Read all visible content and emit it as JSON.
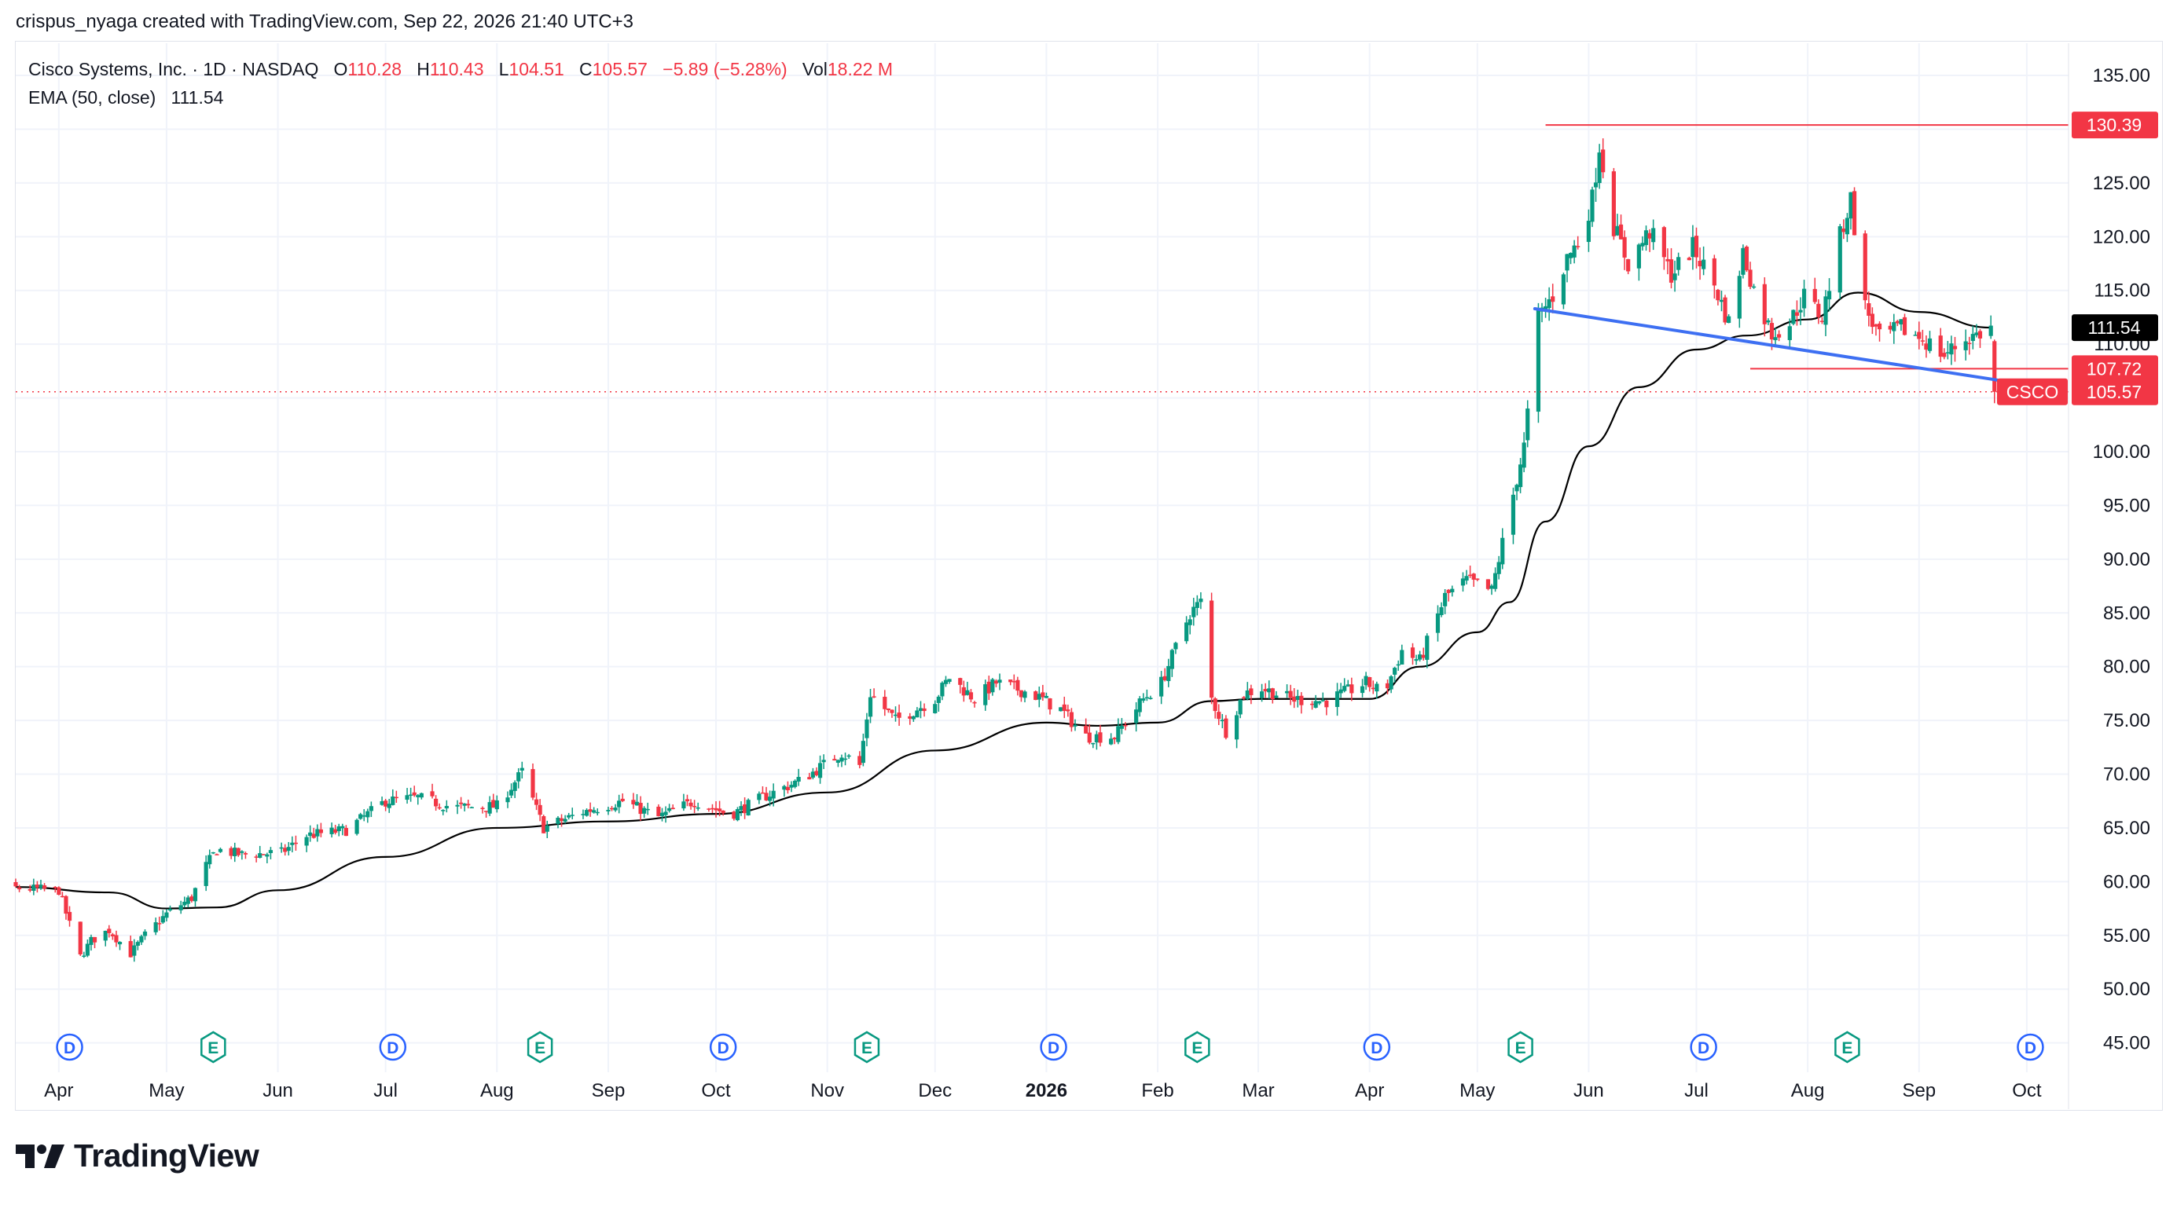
{
  "header": {
    "created_by": "crispus_nyaga created with TradingView.com, Sep 22, 2026 21:40 UTC+3"
  },
  "legend": {
    "symbol": "Cisco Systems, Inc. · 1D · NASDAQ",
    "o_label": "O",
    "o": "110.28",
    "h_label": "H",
    "h": "110.43",
    "l_label": "L",
    "l": "104.51",
    "c_label": "C",
    "c": "105.57",
    "change": "−5.89 (−5.28%)",
    "vol_label": "Vol",
    "vol": "18.22 M",
    "ema_label": "EMA (50, close)",
    "ema": "111.54"
  },
  "footer": {
    "brand": "TradingView"
  },
  "colors": {
    "up": "#089981",
    "down": "#f23645",
    "ema": "#000000",
    "trendline": "#3d6ff2",
    "level": "#f23645",
    "grid": "#f0f3fa",
    "axis_text": "#131722",
    "event_dividend": "#2962ff",
    "event_earnings": "#089981"
  },
  "chart_data": {
    "type": "candlestick",
    "symbol": "CSCO",
    "ylim": [
      43,
      138
    ],
    "y_ticks": [
      45,
      50,
      55,
      60,
      65,
      70,
      75,
      80,
      85,
      90,
      95,
      100,
      105,
      110,
      115,
      120,
      125,
      130,
      135
    ],
    "y_tick_labels": [
      "45.00",
      "50.00",
      "55.00",
      "60.00",
      "65.00",
      "70.00",
      "75.00",
      "80.00",
      "85.00",
      "90.00",
      "95.00",
      "100.00",
      "105.00",
      "110.00",
      "115.00",
      "120.00",
      "125.00",
      "130.00",
      "135.00"
    ],
    "x_range": [
      "2025-03-20",
      "2026-10-10"
    ],
    "x_ticks": [
      {
        "date": "2025-04-01",
        "label": "Apr"
      },
      {
        "date": "2025-05-01",
        "label": "May"
      },
      {
        "date": "2025-06-01",
        "label": "Jun"
      },
      {
        "date": "2025-07-01",
        "label": "Jul"
      },
      {
        "date": "2025-08-01",
        "label": "Aug"
      },
      {
        "date": "2025-09-01",
        "label": "Sep"
      },
      {
        "date": "2025-10-01",
        "label": "Oct"
      },
      {
        "date": "2025-11-01",
        "label": "Nov"
      },
      {
        "date": "2025-12-01",
        "label": "Dec"
      },
      {
        "date": "2026-01-01",
        "label": "2026"
      },
      {
        "date": "2026-02-01",
        "label": "Feb"
      },
      {
        "date": "2026-03-01",
        "label": "Mar"
      },
      {
        "date": "2026-04-01",
        "label": "Apr"
      },
      {
        "date": "2026-05-01",
        "label": "May"
      },
      {
        "date": "2026-06-01",
        "label": "Jun"
      },
      {
        "date": "2026-07-01",
        "label": "Jul"
      },
      {
        "date": "2026-08-01",
        "label": "Aug"
      },
      {
        "date": "2026-09-01",
        "label": "Sep"
      },
      {
        "date": "2026-10-01",
        "label": "Oct"
      }
    ],
    "close_anchors": [
      [
        "2025-03-03",
        58.8
      ],
      [
        "2025-03-20",
        59.4
      ],
      [
        "2025-04-01",
        59.2
      ],
      [
        "2025-04-04",
        56.0
      ],
      [
        "2025-04-07",
        53.0
      ],
      [
        "2025-04-10",
        54.5
      ],
      [
        "2025-04-15",
        55.5
      ],
      [
        "2025-04-21",
        53.3
      ],
      [
        "2025-04-25",
        55.0
      ],
      [
        "2025-05-01",
        57.0
      ],
      [
        "2025-05-08",
        58.5
      ],
      [
        "2025-05-12",
        61.5
      ],
      [
        "2025-05-15",
        63.0
      ],
      [
        "2025-05-22",
        62.5
      ],
      [
        "2025-06-02",
        62.7
      ],
      [
        "2025-06-09",
        64.3
      ],
      [
        "2025-06-20",
        64.8
      ],
      [
        "2025-07-01",
        67.5
      ],
      [
        "2025-07-10",
        67.8
      ],
      [
        "2025-07-20",
        66.9
      ],
      [
        "2025-08-01",
        67.0
      ],
      [
        "2025-08-08",
        70.2
      ],
      [
        "2025-08-14",
        65.0
      ],
      [
        "2025-08-25",
        66.5
      ],
      [
        "2025-09-05",
        67.5
      ],
      [
        "2025-09-15",
        66.0
      ],
      [
        "2025-09-25",
        67.5
      ],
      [
        "2025-10-05",
        66.2
      ],
      [
        "2025-10-15",
        68.0
      ],
      [
        "2025-10-25",
        69.5
      ],
      [
        "2025-11-05",
        72.0
      ],
      [
        "2025-11-10",
        70.8
      ],
      [
        "2025-11-13",
        77.5
      ],
      [
        "2025-11-20",
        75.0
      ],
      [
        "2025-12-01",
        77.0
      ],
      [
        "2025-12-05",
        79.0
      ],
      [
        "2025-12-12",
        77.0
      ],
      [
        "2025-12-18",
        78.5
      ],
      [
        "2025-12-28",
        77.5
      ],
      [
        "2026-01-05",
        76.0
      ],
      [
        "2026-01-12",
        73.5
      ],
      [
        "2026-01-20",
        73.5
      ],
      [
        "2026-01-28",
        77.0
      ],
      [
        "2026-02-02",
        78.5
      ],
      [
        "2026-02-10",
        85.0
      ],
      [
        "2026-02-13",
        86.0
      ],
      [
        "2026-02-16",
        77.0
      ],
      [
        "2026-02-20",
        74.0
      ],
      [
        "2026-02-25",
        77.5
      ],
      [
        "2026-03-02",
        78.0
      ],
      [
        "2026-03-10",
        77.0
      ],
      [
        "2026-03-20",
        76.8
      ],
      [
        "2026-03-31",
        78.5
      ],
      [
        "2026-04-05",
        77.5
      ],
      [
        "2026-04-10",
        81.5
      ],
      [
        "2026-04-15",
        80.5
      ],
      [
        "2026-04-22",
        86.5
      ],
      [
        "2026-04-28",
        88.0
      ],
      [
        "2026-05-05",
        87.0
      ],
      [
        "2026-05-10",
        94.5
      ],
      [
        "2026-05-14",
        100.5
      ],
      [
        "2026-05-18",
        112.5
      ],
      [
        "2026-05-22",
        114.5
      ],
      [
        "2026-05-26",
        118.0
      ],
      [
        "2026-05-29",
        119.5
      ],
      [
        "2026-06-02",
        123.5
      ],
      [
        "2026-06-04",
        128.5
      ],
      [
        "2026-06-08",
        121.0
      ],
      [
        "2026-06-12",
        117.5
      ],
      [
        "2026-06-18",
        120.5
      ],
      [
        "2026-06-24",
        116.5
      ],
      [
        "2026-06-30",
        119.0
      ],
      [
        "2026-07-06",
        115.5
      ],
      [
        "2026-07-10",
        112.0
      ],
      [
        "2026-07-14",
        118.5
      ],
      [
        "2026-07-18",
        114.0
      ],
      [
        "2026-07-22",
        111.0
      ],
      [
        "2026-07-27",
        112.0
      ],
      [
        "2026-07-31",
        114.5
      ],
      [
        "2026-08-05",
        112.5
      ],
      [
        "2026-08-10",
        120.0
      ],
      [
        "2026-08-13",
        123.5
      ],
      [
        "2026-08-17",
        113.5
      ],
      [
        "2026-08-21",
        110.5
      ],
      [
        "2026-08-27",
        111.5
      ],
      [
        "2026-09-02",
        110.5
      ],
      [
        "2026-09-08",
        109.0
      ],
      [
        "2026-09-14",
        110.5
      ],
      [
        "2026-09-18",
        111.0
      ],
      [
        "2026-09-21",
        111.46
      ],
      [
        "2026-09-22",
        105.57
      ]
    ],
    "ema": {
      "name": "EMA (50, close)",
      "points": [
        [
          "2025-03-20",
          59.5
        ],
        [
          "2025-04-15",
          59.0
        ],
        [
          "2025-05-01",
          57.5
        ],
        [
          "2025-05-15",
          57.6
        ],
        [
          "2025-06-01",
          59.2
        ],
        [
          "2025-07-01",
          62.3
        ],
        [
          "2025-08-01",
          65.0
        ],
        [
          "2025-09-01",
          65.6
        ],
        [
          "2025-10-01",
          66.3
        ],
        [
          "2025-11-01",
          68.3
        ],
        [
          "2025-12-01",
          72.2
        ],
        [
          "2026-01-01",
          74.8
        ],
        [
          "2026-01-15",
          74.5
        ],
        [
          "2026-02-01",
          74.8
        ],
        [
          "2026-02-16",
          76.8
        ],
        [
          "2026-03-01",
          77.0
        ],
        [
          "2026-04-01",
          77.0
        ],
        [
          "2026-04-15",
          80.0
        ],
        [
          "2026-05-01",
          83.2
        ],
        [
          "2026-05-10",
          86.0
        ],
        [
          "2026-05-20",
          93.5
        ],
        [
          "2026-06-01",
          100.5
        ],
        [
          "2026-06-15",
          106.0
        ],
        [
          "2026-07-01",
          109.5
        ],
        [
          "2026-07-15",
          110.8
        ],
        [
          "2026-08-01",
          112.3
        ],
        [
          "2026-08-15",
          114.8
        ],
        [
          "2026-09-01",
          113.0
        ],
        [
          "2026-09-21",
          111.54
        ]
      ]
    },
    "last": {
      "date": "2026-09-22",
      "open": 110.28,
      "high": 110.43,
      "low": 104.51,
      "close": 105.57
    },
    "drawings": {
      "resistance": {
        "price": 130.39,
        "from": "2026-05-20",
        "label": "130.39"
      },
      "support": {
        "price": 107.72,
        "from": "2026-07-16",
        "label": "107.72"
      },
      "trendline": {
        "from": [
          "2026-05-17",
          113.3
        ],
        "to": [
          "2026-09-24",
          106.6
        ]
      }
    },
    "price_labels": [
      {
        "price": 130.39,
        "text": "130.39",
        "kind": "level"
      },
      {
        "price": 111.54,
        "text": "111.54",
        "kind": "ema"
      },
      {
        "price": 107.72,
        "text": "107.72",
        "kind": "level"
      },
      {
        "price": 105.57,
        "text": "105.57",
        "kind": "last",
        "tag": "CSCO"
      }
    ],
    "events": [
      {
        "date": "2025-04-04",
        "letter": "D"
      },
      {
        "date": "2025-05-14",
        "letter": "E"
      },
      {
        "date": "2025-07-03",
        "letter": "D"
      },
      {
        "date": "2025-08-13",
        "letter": "E"
      },
      {
        "date": "2025-10-03",
        "letter": "D"
      },
      {
        "date": "2025-11-12",
        "letter": "E"
      },
      {
        "date": "2026-01-03",
        "letter": "D"
      },
      {
        "date": "2026-02-12",
        "letter": "E"
      },
      {
        "date": "2026-04-03",
        "letter": "D"
      },
      {
        "date": "2026-05-13",
        "letter": "E"
      },
      {
        "date": "2026-07-03",
        "letter": "D"
      },
      {
        "date": "2026-08-12",
        "letter": "E"
      },
      {
        "date": "2026-10-02",
        "letter": "D"
      }
    ]
  }
}
